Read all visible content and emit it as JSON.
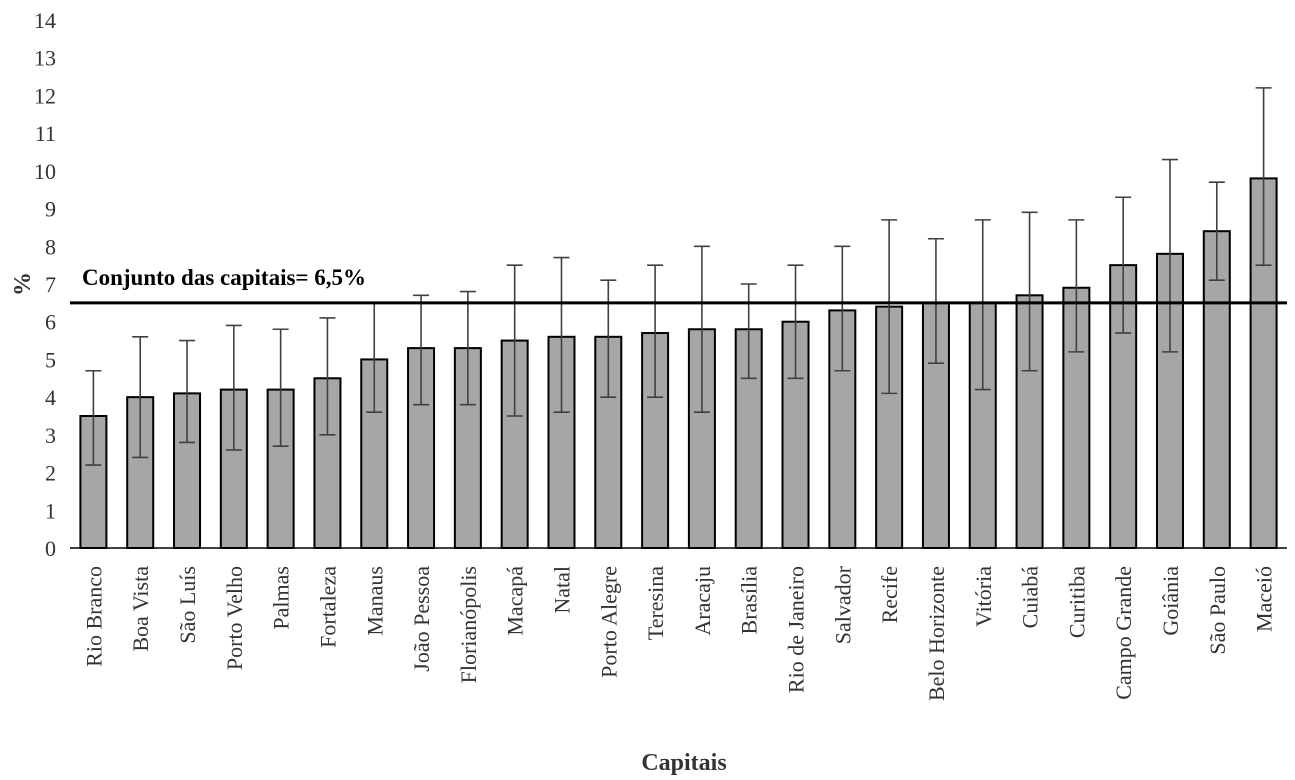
{
  "chart_data": {
    "type": "bar",
    "title": "",
    "xlabel": "Capitais",
    "ylabel": "%",
    "ylim": [
      0,
      14
    ],
    "yticks": [
      0,
      1,
      2,
      3,
      4,
      5,
      6,
      7,
      8,
      9,
      10,
      11,
      12,
      13,
      14
    ],
    "grid": false,
    "categories": [
      "Rio Branco",
      "Boa Vista",
      "São Luís",
      "Porto Velho",
      "Palmas",
      "Fortaleza",
      "Manaus",
      "João Pessoa",
      "Florianópolis",
      "Macapá",
      "Natal",
      "Porto Alegre",
      "Teresina",
      "Aracaju",
      "Brasília",
      "Rio de Janeiro",
      "Salvador",
      "Recife",
      "Belo Horizonte",
      "Vitória",
      "Cuiabá",
      "Curitiba",
      "Campo Grande",
      "Goiânia",
      "São Paulo",
      "Maceió"
    ],
    "values": [
      3.5,
      4.0,
      4.1,
      4.2,
      4.2,
      4.5,
      5.0,
      5.3,
      5.3,
      5.5,
      5.6,
      5.6,
      5.7,
      5.8,
      5.8,
      6.0,
      6.3,
      6.4,
      6.5,
      6.5,
      6.7,
      6.9,
      7.5,
      7.8,
      8.4,
      9.8
    ],
    "error_lower": [
      2.2,
      2.4,
      2.8,
      2.6,
      2.7,
      3.0,
      3.6,
      3.8,
      3.8,
      3.5,
      3.6,
      4.0,
      4.0,
      3.6,
      4.5,
      4.5,
      4.7,
      4.1,
      4.9,
      4.2,
      4.7,
      5.2,
      5.7,
      5.2,
      7.1,
      7.5
    ],
    "error_upper": [
      4.7,
      5.6,
      5.5,
      5.9,
      5.8,
      6.1,
      6.5,
      6.7,
      6.8,
      7.5,
      7.7,
      7.1,
      7.5,
      8.0,
      7.0,
      7.5,
      8.0,
      8.7,
      8.2,
      8.7,
      8.9,
      8.7,
      9.3,
      10.3,
      9.7,
      12.2
    ],
    "reference_line": {
      "value": 6.5,
      "label": "Conjunto das capitais= 6,5%"
    },
    "colors": {
      "bar_fill": "#a6a6a6",
      "bar_stroke": "#000000",
      "error_bar": "#404040",
      "reference_line": "#000000"
    }
  }
}
